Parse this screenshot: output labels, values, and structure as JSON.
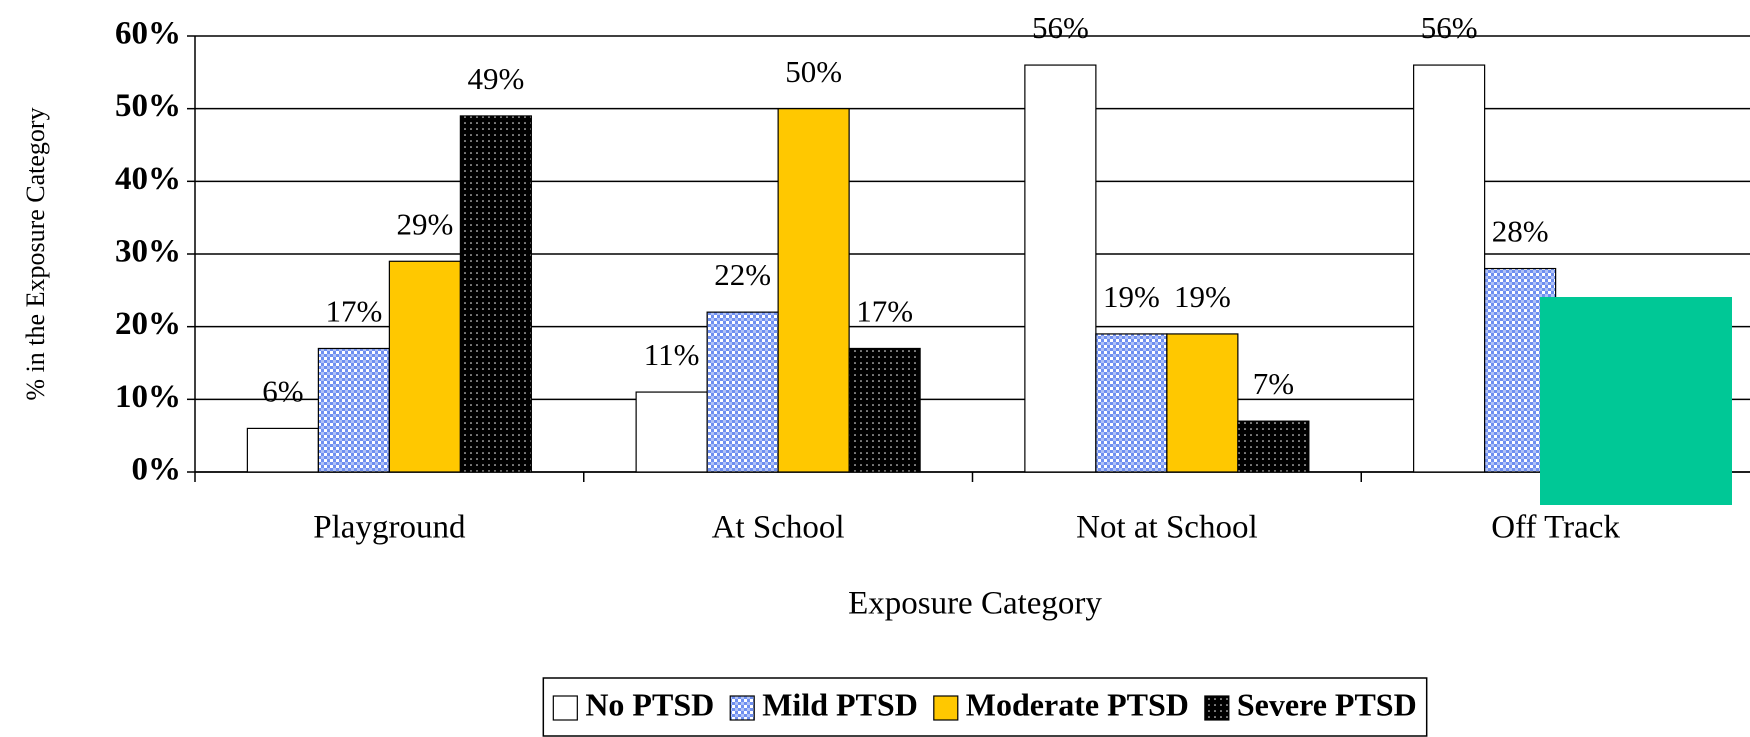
{
  "chart_data": {
    "type": "bar",
    "x_label": "Exposure Category",
    "y_label": "% in the Exposure Category",
    "categories": [
      "Playground",
      "At School",
      "Not at School",
      "Off Track"
    ],
    "series": [
      {
        "name": "No PTSD",
        "color": "#ffffff",
        "values": [
          6,
          11,
          56,
          56
        ],
        "value_labels": [
          "6%",
          "11%",
          "56%",
          "56%"
        ]
      },
      {
        "name": "Mild PTSD",
        "color": "#6f8ff0",
        "pattern": "checker",
        "values": [
          17,
          22,
          19,
          28
        ],
        "value_labels": [
          "17%",
          "22%",
          "19%",
          "28%"
        ]
      },
      {
        "name": "Moderate PTSD",
        "color": "#ffc800",
        "values": [
          29,
          50,
          19,
          null
        ],
        "value_labels": [
          "29%",
          "50%",
          "19%",
          null
        ]
      },
      {
        "name": "Severe PTSD",
        "color": "#000000",
        "pattern": "dots",
        "values": [
          49,
          17,
          7,
          null
        ],
        "value_labels": [
          "49%",
          "17%",
          "7%",
          null
        ]
      }
    ],
    "ylim": [
      0,
      60
    ],
    "yticks": [
      {
        "value": 0,
        "label": "0%"
      },
      {
        "value": 10,
        "label": "10%"
      },
      {
        "value": 20,
        "label": "20%"
      },
      {
        "value": 30,
        "label": "30%"
      },
      {
        "value": 40,
        "label": "40%"
      },
      {
        "value": 50,
        "label": "50%"
      },
      {
        "value": 60,
        "label": "60%"
      }
    ],
    "grid": true,
    "legend": "bottom"
  }
}
